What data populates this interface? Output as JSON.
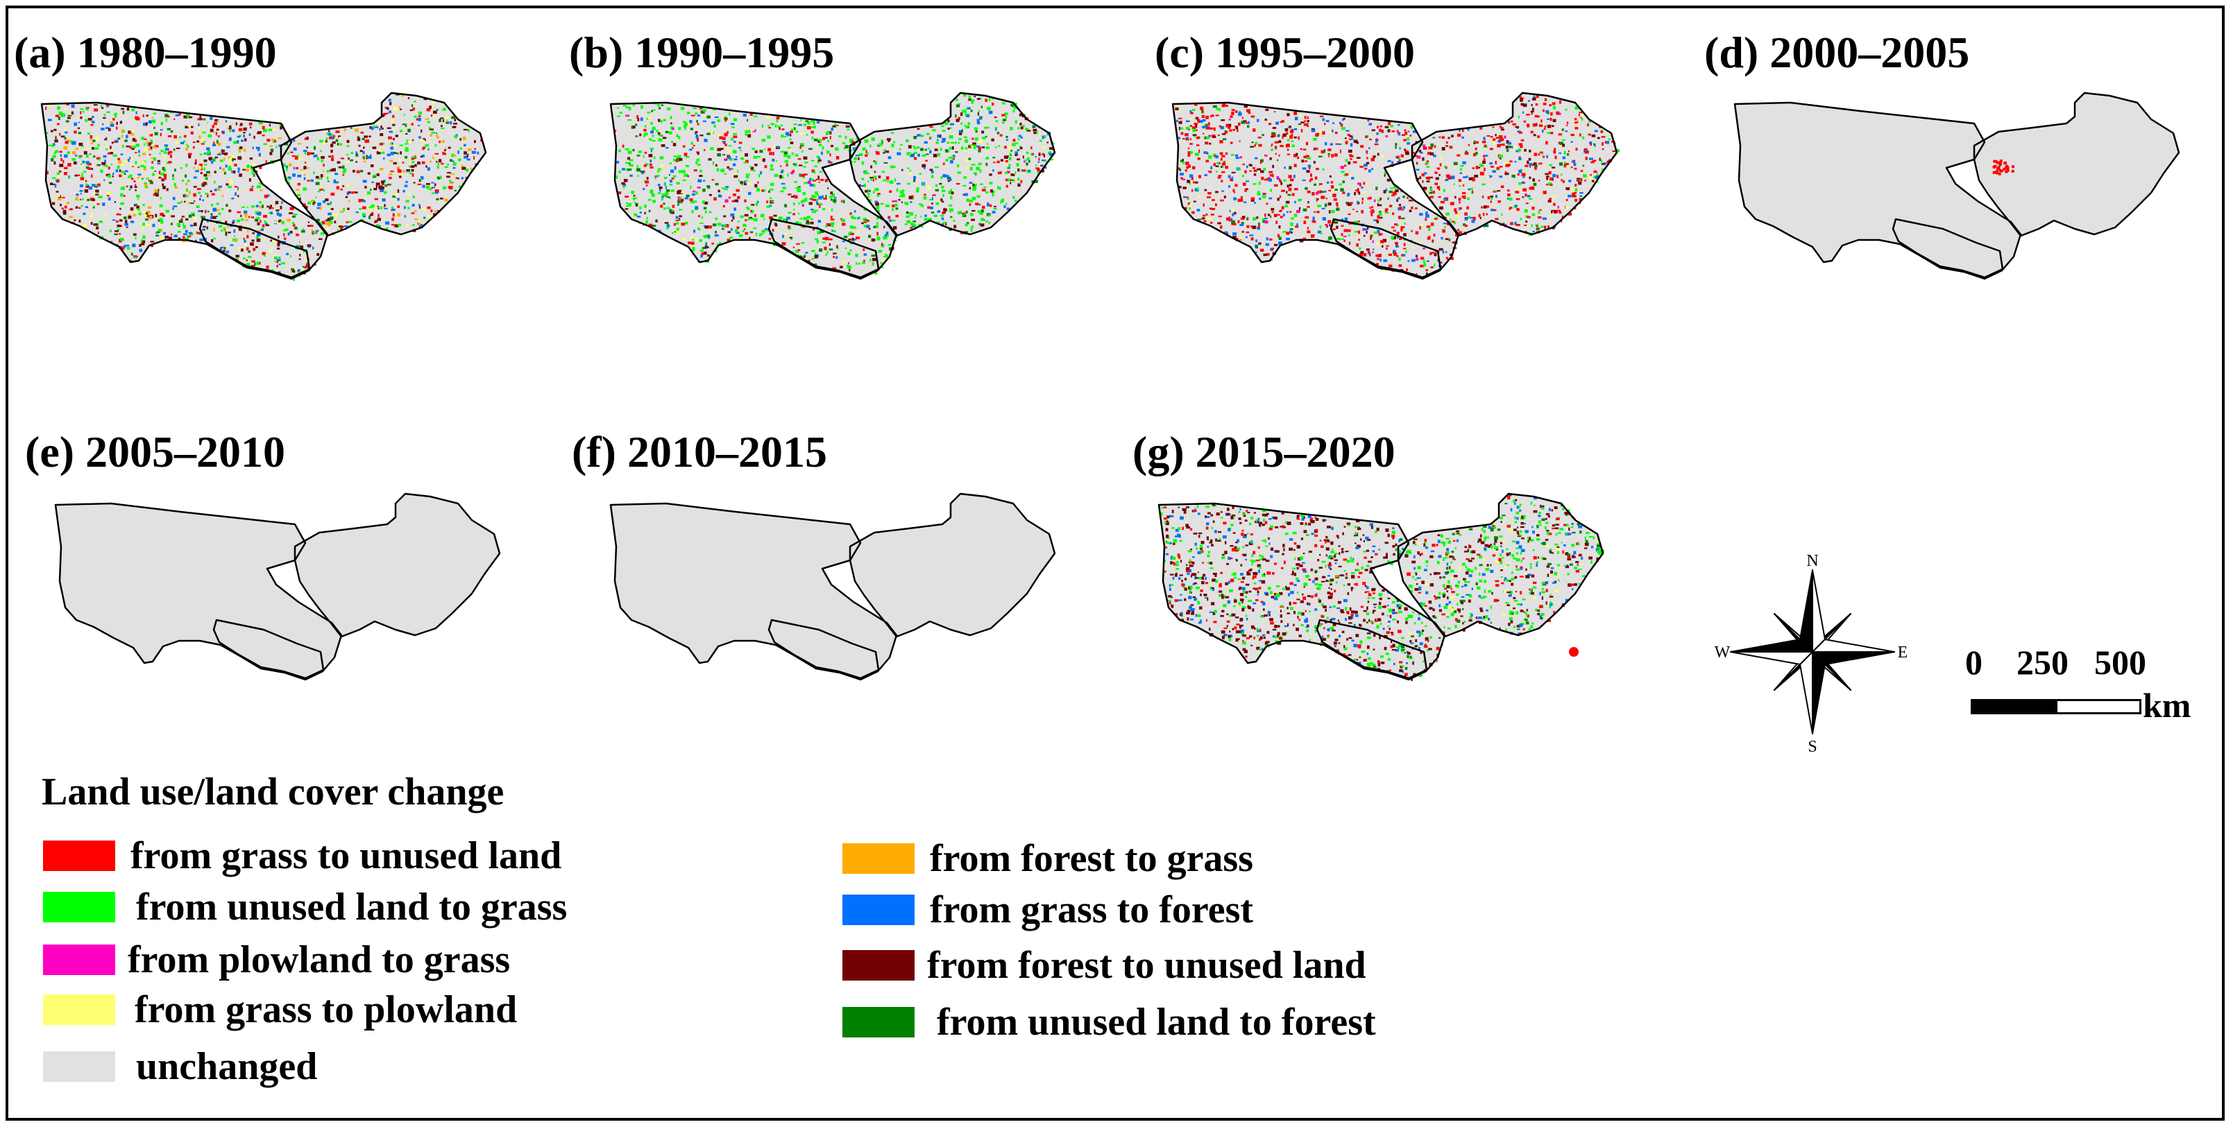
{
  "panels": [
    {
      "label": "(a) 1980–1990",
      "pattern": "mixed-dense"
    },
    {
      "label": "(b) 1990–1995",
      "pattern": "grass-gain"
    },
    {
      "label": "(c) 1995–2000",
      "pattern": "grass-loss"
    },
    {
      "label": "(d) 2000–2005",
      "pattern": "mostly-unchanged"
    },
    {
      "label": "(e) 2005–2010",
      "pattern": "unchanged"
    },
    {
      "label": "(f) 2010–2015",
      "pattern": "unchanged"
    },
    {
      "label": "(g) 2015–2020",
      "pattern": "grass-gain-east"
    }
  ],
  "legend": {
    "title": "Land use/land cover change",
    "items": [
      {
        "label": "from grass to unused land",
        "color": "#ff0000"
      },
      {
        "label": "from unused land to grass",
        "color": "#00ff00"
      },
      {
        "label": "from plowland to grass",
        "color": "#ff00c3"
      },
      {
        "label": "from grass to plowland",
        "color": "#ffff73"
      },
      {
        "label": "unchanged",
        "color": "#e1e1e1"
      },
      {
        "label": "from forest to grass",
        "color": "#ffaa00"
      },
      {
        "label": "from grass to forest",
        "color": "#0070ff"
      },
      {
        "label": "from forest to unused land",
        "color": "#730000"
      },
      {
        "label": "from unused land to forest",
        "color": "#008000"
      }
    ]
  },
  "compass": {
    "n": "N",
    "s": "S",
    "e": "E",
    "w": "W",
    "icon": "north-arrow-compass-rose"
  },
  "scale_bar": {
    "ticks": [
      "0",
      "250",
      "500"
    ],
    "unit": "km",
    "icon": "scale-bar"
  }
}
